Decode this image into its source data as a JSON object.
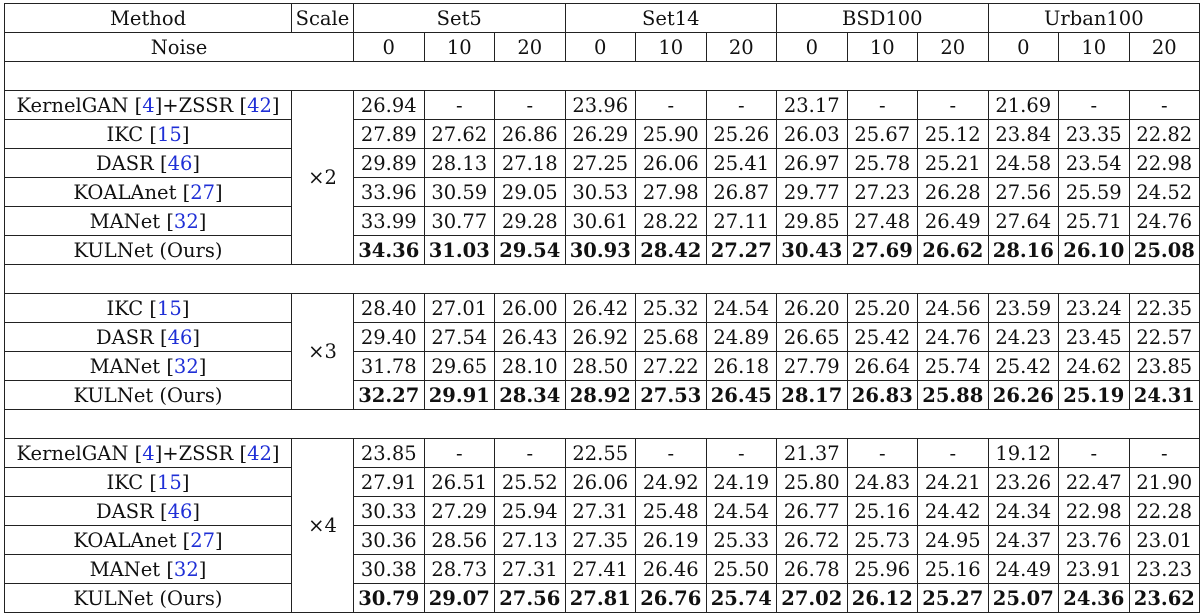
{
  "header": {
    "method": "Method",
    "scale": "Scale",
    "noise": "Noise",
    "datasets": [
      "Set5",
      "Set14",
      "BSD100",
      "Urban100"
    ],
    "noise_levels": [
      "0",
      "10",
      "20"
    ]
  },
  "groups": [
    {
      "scale": "×2",
      "rows": [
        {
          "name": "KernelGAN ",
          "cite": "4",
          "name2": "+ZSSR ",
          "cite2": "42",
          "values": [
            "26.94",
            "-",
            "-",
            "23.96",
            "-",
            "-",
            "23.17",
            "-",
            "-",
            "21.69",
            "-",
            "-"
          ]
        },
        {
          "name": "IKC ",
          "cite": "15",
          "values": [
            "27.89",
            "27.62",
            "26.86",
            "26.29",
            "25.90",
            "25.26",
            "26.03",
            "25.67",
            "25.12",
            "23.84",
            "23.35",
            "22.82"
          ]
        },
        {
          "name": "DASR ",
          "cite": "46",
          "values": [
            "29.89",
            "28.13",
            "27.18",
            "27.25",
            "26.06",
            "25.41",
            "26.97",
            "25.78",
            "25.21",
            "24.58",
            "23.54",
            "22.98"
          ]
        },
        {
          "name": "KOALAnet ",
          "cite": "27",
          "values": [
            "33.96",
            "30.59",
            "29.05",
            "30.53",
            "27.98",
            "26.87",
            "29.77",
            "27.23",
            "26.28",
            "27.56",
            "25.59",
            "24.52"
          ]
        },
        {
          "name": "MANet ",
          "cite": "32",
          "values": [
            "33.99",
            "30.77",
            "29.28",
            "30.61",
            "28.22",
            "27.11",
            "29.85",
            "27.48",
            "26.49",
            "27.64",
            "25.71",
            "24.76"
          ]
        },
        {
          "name": "KULNet (Ours)",
          "ours": true,
          "values": [
            "34.36",
            "31.03",
            "29.54",
            "30.93",
            "28.42",
            "27.27",
            "30.43",
            "27.69",
            "26.62",
            "28.16",
            "26.10",
            "25.08"
          ]
        }
      ]
    },
    {
      "scale": "×3",
      "rows": [
        {
          "name": "IKC ",
          "cite": "15",
          "values": [
            "28.40",
            "27.01",
            "26.00",
            "26.42",
            "25.32",
            "24.54",
            "26.20",
            "25.20",
            "24.56",
            "23.59",
            "23.24",
            "22.35"
          ]
        },
        {
          "name": "DASR ",
          "cite": "46",
          "values": [
            "29.40",
            "27.54",
            "26.43",
            "26.92",
            "25.68",
            "24.89",
            "26.65",
            "25.42",
            "24.76",
            "24.23",
            "23.45",
            "22.57"
          ]
        },
        {
          "name": "MANet ",
          "cite": "32",
          "values": [
            "31.78",
            "29.65",
            "28.10",
            "28.50",
            "27.22",
            "26.18",
            "27.79",
            "26.64",
            "25.74",
            "25.42",
            "24.62",
            "23.85"
          ]
        },
        {
          "name": "KULNet (Ours)",
          "ours": true,
          "values": [
            "32.27",
            "29.91",
            "28.34",
            "28.92",
            "27.53",
            "26.45",
            "28.17",
            "26.83",
            "25.88",
            "26.26",
            "25.19",
            "24.31"
          ]
        }
      ]
    },
    {
      "scale": "×4",
      "rows": [
        {
          "name": "KernelGAN ",
          "cite": "4",
          "name2": "+ZSSR ",
          "cite2": "42",
          "values": [
            "23.85",
            "-",
            "-",
            "22.55",
            "-",
            "-",
            "21.37",
            "-",
            "-",
            "19.12",
            "-",
            "-"
          ]
        },
        {
          "name": "IKC ",
          "cite": "15",
          "values": [
            "27.91",
            "26.51",
            "25.52",
            "26.06",
            "24.92",
            "24.19",
            "25.80",
            "24.83",
            "24.21",
            "23.26",
            "22.47",
            "21.90"
          ]
        },
        {
          "name": "DASR ",
          "cite": "46",
          "values": [
            "30.33",
            "27.29",
            "25.94",
            "27.31",
            "25.48",
            "24.54",
            "26.77",
            "25.16",
            "24.42",
            "24.34",
            "22.98",
            "22.28"
          ]
        },
        {
          "name": "KOALAnet ",
          "cite": "27",
          "values": [
            "30.36",
            "28.56",
            "27.13",
            "27.35",
            "26.19",
            "25.33",
            "26.72",
            "25.73",
            "24.95",
            "24.37",
            "23.76",
            "23.01"
          ]
        },
        {
          "name": "MANet ",
          "cite": "32",
          "values": [
            "30.38",
            "28.73",
            "27.31",
            "27.41",
            "26.46",
            "25.50",
            "26.78",
            "25.96",
            "25.16",
            "24.49",
            "23.91",
            "23.23"
          ]
        },
        {
          "name": "KULNet (Ours)",
          "ours": true,
          "values": [
            "30.79",
            "29.07",
            "27.56",
            "27.81",
            "26.76",
            "25.74",
            "27.02",
            "26.12",
            "25.27",
            "25.07",
            "24.36",
            "23.62"
          ]
        }
      ]
    }
  ],
  "colors": {
    "citation": "#1f2fd6",
    "border": "#222222",
    "text": "#111111"
  }
}
